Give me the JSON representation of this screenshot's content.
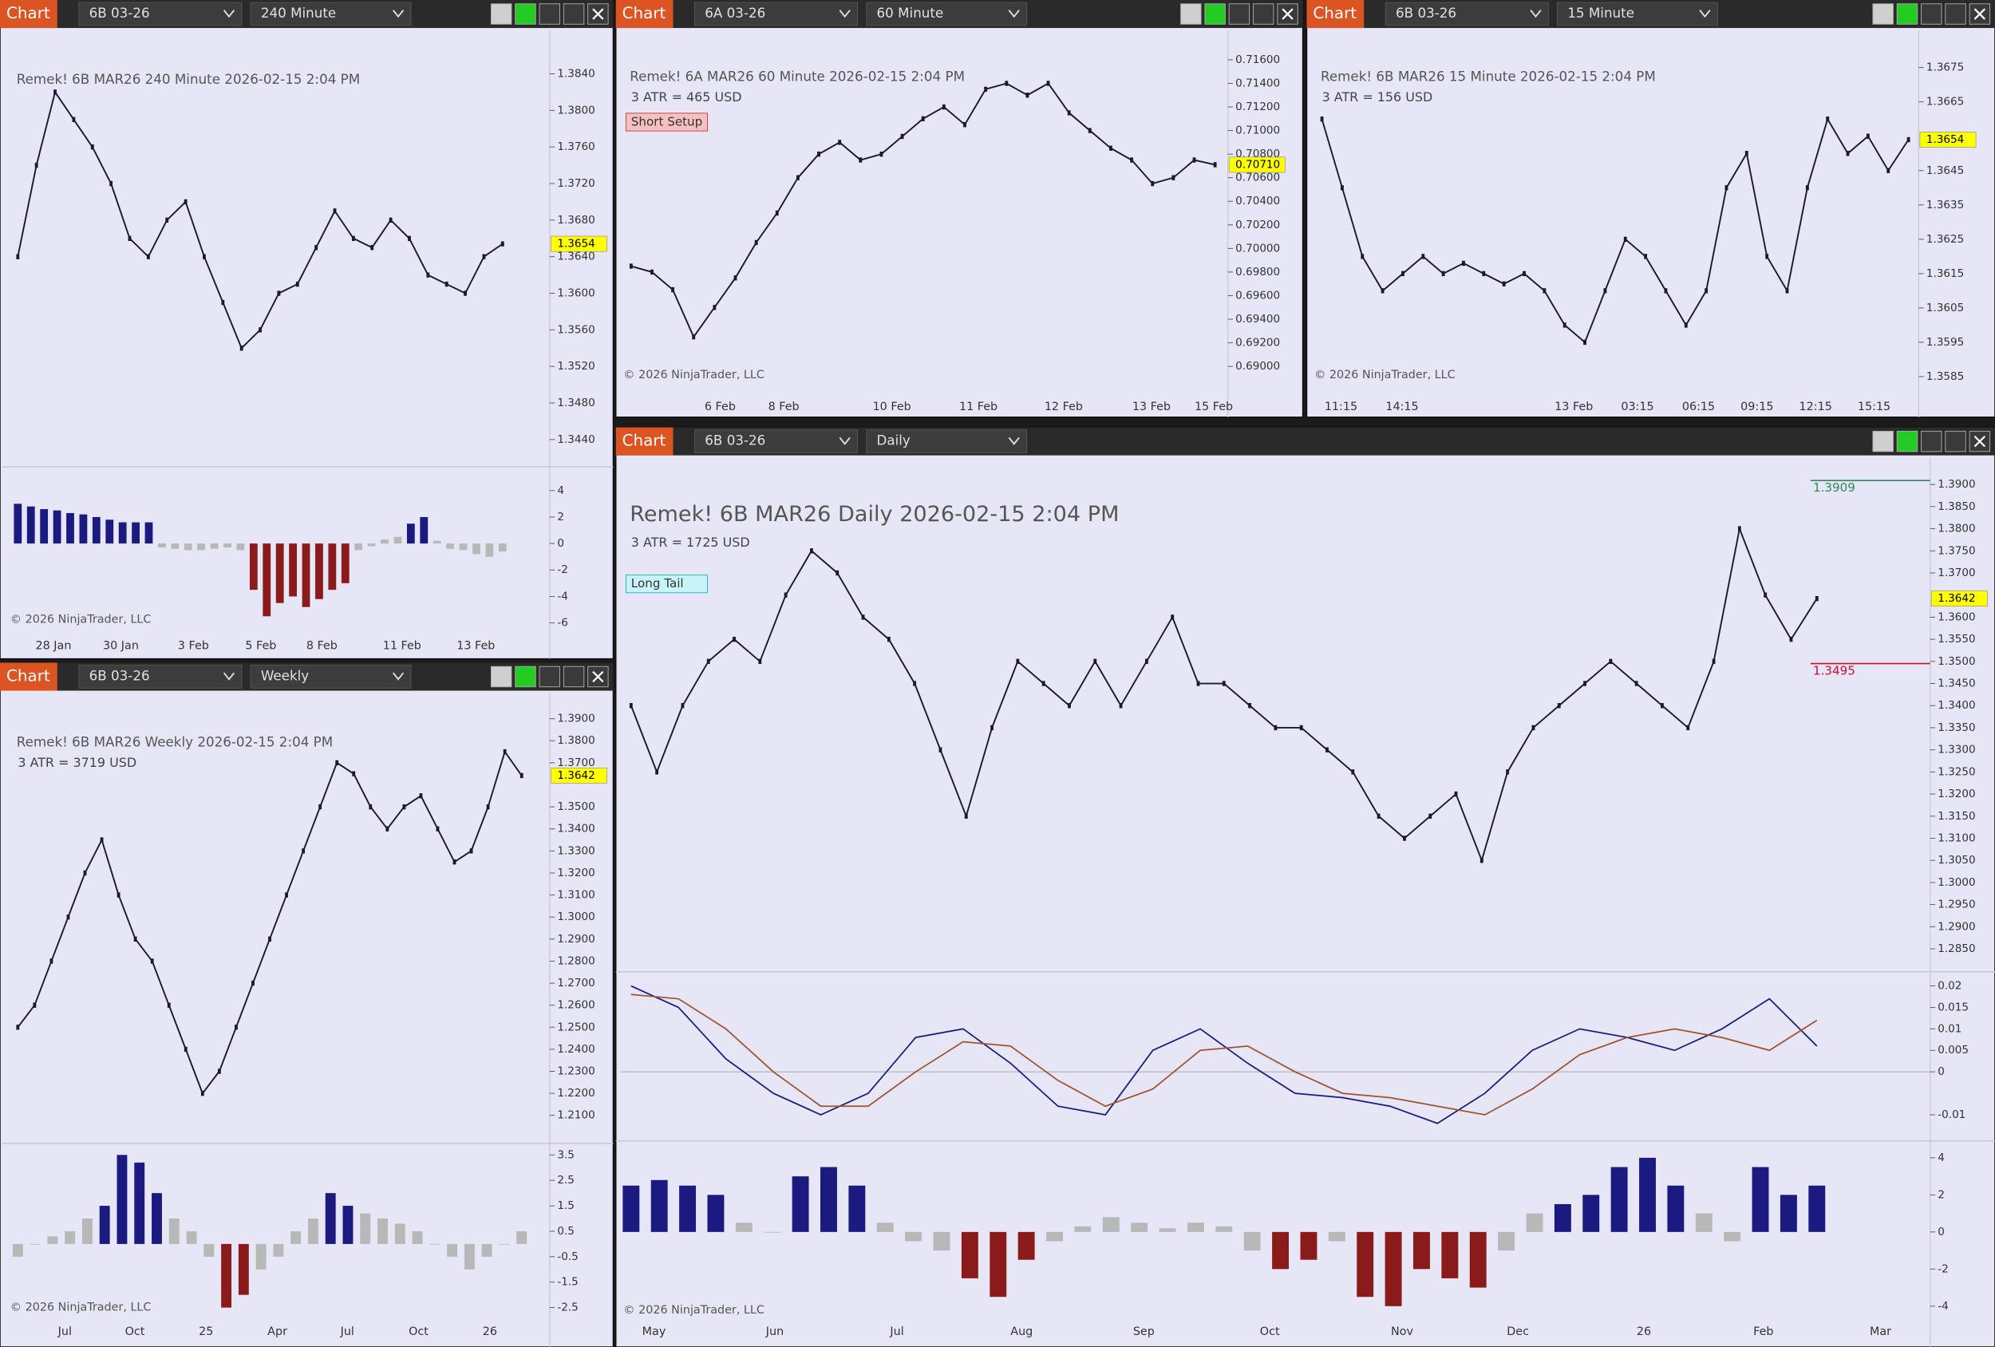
{
  "windows": [
    {
      "toolbar": {
        "label": "Chart",
        "instrument": "6B 03-26",
        "timeframe": "240 Minute"
      },
      "chart": {
        "type": "line",
        "title": "Remek!  6B MAR26  240 Minute  2026-02-15 2:04 PM",
        "ylim": [
          1.3413,
          1.3879
        ],
        "yticks": [
          {
            "value": 1.384,
            "label": "1.3840"
          },
          {
            "value": 1.38,
            "label": "1.3800"
          },
          {
            "value": 1.376,
            "label": "1.3760"
          },
          {
            "value": 1.372,
            "label": "1.3720"
          },
          {
            "value": 1.368,
            "label": "1.3680"
          },
          {
            "value": 1.364,
            "label": "1.3640"
          },
          {
            "value": 1.36,
            "label": "1.3600"
          },
          {
            "value": 1.356,
            "label": "1.3560"
          },
          {
            "value": 1.352,
            "label": "1.3520"
          },
          {
            "value": 1.348,
            "label": "1.3480"
          },
          {
            "value": 1.344,
            "label": "1.3440"
          }
        ],
        "x_labels": [
          "28 Jan",
          "30 Jan",
          "3 Feb",
          "5 Feb",
          "8 Feb",
          "11 Feb",
          "13 Feb"
        ],
        "closes": [
          1.364,
          1.374,
          1.382,
          1.379,
          1.376,
          1.372,
          1.366,
          1.364,
          1.368,
          1.37,
          1.364,
          1.359,
          1.354,
          1.356,
          1.36,
          1.361,
          1.365,
          1.369,
          1.366,
          1.365,
          1.368,
          1.366,
          1.362,
          1.361,
          1.36,
          1.364,
          1.3654
        ],
        "price_color": "#1a1a2e",
        "last_price": 1.3654,
        "indicator": {
          "ylim": [
            -6.7,
            5.7
          ],
          "yticks": [
            4,
            2,
            0,
            -2,
            -4,
            -6
          ],
          "values": [
            3.0,
            2.8,
            2.6,
            2.5,
            2.3,
            2.2,
            2.0,
            1.8,
            1.6,
            1.6,
            1.6,
            -0.3,
            -0.4,
            -0.5,
            -0.5,
            -0.4,
            -0.3,
            -0.5,
            -3.5,
            -5.5,
            -4.5,
            -4.0,
            -4.8,
            -4.2,
            -3.5,
            -3.0,
            -0.5,
            -0.2,
            0.3,
            0.5,
            1.5,
            2.0,
            0.2,
            -0.4,
            -0.5,
            -0.8,
            -1.0,
            -0.6
          ]
        },
        "colors": {
          "up": "#1a1a80",
          "down": "#8b1a1a",
          "flat": "#b8b8b8"
        },
        "copyright": "© 2026 NinjaTrader, LLC"
      }
    },
    {
      "toolbar": {
        "label": "Chart",
        "instrument": "6A 03-26",
        "timeframe": "60 Minute"
      },
      "chart": {
        "type": "line",
        "title": "Remek!  6A MAR26  60 Minute  2026-02-15 2:04 PM",
        "atr": "3 ATR = 465 USD",
        "setup": "Short Setup",
        "ylim": [
          0.68817,
          0.71805
        ],
        "yticks": [
          {
            "value": 0.716,
            "label": "0.71600"
          },
          {
            "value": 0.714,
            "label": "0.71400"
          },
          {
            "value": 0.712,
            "label": "0.71200"
          },
          {
            "value": 0.71,
            "label": "0.71000"
          },
          {
            "value": 0.708,
            "label": "0.70800"
          },
          {
            "value": 0.706,
            "label": "0.70600"
          },
          {
            "value": 0.704,
            "label": "0.70400"
          },
          {
            "value": 0.702,
            "label": "0.70200"
          },
          {
            "value": 0.7,
            "label": "0.70000"
          },
          {
            "value": 0.698,
            "label": "0.69800"
          },
          {
            "value": 0.696,
            "label": "0.69600"
          },
          {
            "value": 0.694,
            "label": "0.69400"
          },
          {
            "value": 0.692,
            "label": "0.69200"
          },
          {
            "value": 0.69,
            "label": "0.69000"
          }
        ],
        "x_labels": [
          "6 Feb",
          "8 Feb",
          "10 Feb",
          "11 Feb",
          "12 Feb",
          "13 Feb",
          "15 Feb"
        ],
        "closes": [
          0.6985,
          0.698,
          0.6965,
          0.6925,
          0.695,
          0.6975,
          0.7005,
          0.703,
          0.706,
          0.708,
          0.709,
          0.7075,
          0.708,
          0.7095,
          0.711,
          0.712,
          0.7105,
          0.7135,
          0.714,
          0.713,
          0.714,
          0.7115,
          0.71,
          0.7085,
          0.7075,
          0.7055,
          0.706,
          0.7075,
          0.7071
        ],
        "price_color": "#1a1a2e",
        "last_price": {
          "value": 0.7071,
          "label": "0.70710"
        },
        "copyright": "© 2026 NinjaTrader, LLC"
      }
    },
    {
      "toolbar": {
        "label": "Chart",
        "instrument": "6B 03-26",
        "timeframe": "15 Minute"
      },
      "chart": {
        "type": "line",
        "title": "Remek!  6B MAR26  15 Minute  2026-02-15 2:04 PM",
        "atr": "3 ATR = 156 USD",
        "ylim": [
          1.35817,
          1.36843
        ],
        "yticks": [
          {
            "value": 1.3675,
            "label": "1.3675"
          },
          {
            "value": 1.3665,
            "label": "1.3665"
          },
          {
            "value": 1.3645,
            "label": "1.3645"
          },
          {
            "value": 1.3635,
            "label": "1.3635"
          },
          {
            "value": 1.3625,
            "label": "1.3625"
          },
          {
            "value": 1.3615,
            "label": "1.3615"
          },
          {
            "value": 1.3605,
            "label": "1.3605"
          },
          {
            "value": 1.3595,
            "label": "1.3595"
          },
          {
            "value": 1.3585,
            "label": "1.3585"
          }
        ],
        "x_labels": [
          "11:15",
          "14:15",
          "13 Feb",
          "03:15",
          "06:15",
          "09:15",
          "12:15",
          "15:15"
        ],
        "closes": [
          1.366,
          1.364,
          1.362,
          1.361,
          1.3615,
          1.362,
          1.3615,
          1.3618,
          1.3615,
          1.3612,
          1.3615,
          1.361,
          1.36,
          1.3595,
          1.361,
          1.3625,
          1.362,
          1.361,
          1.36,
          1.361,
          1.364,
          1.365,
          1.362,
          1.361,
          1.364,
          1.366,
          1.365,
          1.3655,
          1.3645,
          1.3654
        ],
        "price_color": "#1a1a2e",
        "last_price": 1.3654,
        "copyright": "© 2026 NinjaTrader, LLC"
      }
    },
    {
      "toolbar": {
        "label": "Chart",
        "instrument": "6B 03-26",
        "timeframe": "Weekly"
      },
      "chart": {
        "type": "line",
        "title": "Remek!  6B MAR26  Weekly  2026-02-15 2:04 PM",
        "atr": "3 ATR = 3719 USD",
        "ylim": [
          1.1984,
          1.3981
        ],
        "yticks": [
          {
            "value": 1.39,
            "label": "1.3900"
          },
          {
            "value": 1.38,
            "label": "1.3800"
          },
          {
            "value": 1.37,
            "label": "1.3700"
          },
          {
            "value": 1.35,
            "label": "1.3500"
          },
          {
            "value": 1.34,
            "label": "1.3400"
          },
          {
            "value": 1.33,
            "label": "1.3300"
          },
          {
            "value": 1.32,
            "label": "1.3200"
          },
          {
            "value": 1.31,
            "label": "1.3100"
          },
          {
            "value": 1.3,
            "label": "1.3000"
          },
          {
            "value": 1.29,
            "label": "1.2900"
          },
          {
            "value": 1.28,
            "label": "1.2800"
          },
          {
            "value": 1.27,
            "label": "1.2700"
          },
          {
            "value": 1.26,
            "label": "1.2600"
          },
          {
            "value": 1.25,
            "label": "1.2500"
          },
          {
            "value": 1.24,
            "label": "1.2400"
          },
          {
            "value": 1.23,
            "label": "1.2300"
          },
          {
            "value": 1.22,
            "label": "1.2200"
          },
          {
            "value": 1.21,
            "label": "1.2100"
          }
        ],
        "x_labels": [
          "Jul",
          "Oct",
          "25",
          "Apr",
          "Jul",
          "Oct",
          "26"
        ],
        "closes": [
          1.25,
          1.26,
          1.28,
          1.3,
          1.32,
          1.335,
          1.31,
          1.29,
          1.28,
          1.26,
          1.24,
          1.22,
          1.23,
          1.25,
          1.27,
          1.29,
          1.31,
          1.33,
          1.35,
          1.37,
          1.365,
          1.35,
          1.34,
          1.35,
          1.355,
          1.34,
          1.325,
          1.33,
          1.35,
          1.375,
          1.3642
        ],
        "price_color": "#1a1a2e",
        "last_price": 1.3642,
        "indicator": {
          "ylim": [
            -3.0,
            3.9
          ],
          "yticks": [
            3.5,
            2.5,
            1.5,
            0.5,
            -0.5,
            -1.5,
            -2.5
          ],
          "values": [
            -0.5,
            0,
            0.3,
            0.5,
            1.0,
            1.5,
            3.5,
            3.2,
            2.0,
            1.0,
            0.5,
            -0.5,
            -2.5,
            -2.0,
            -1.0,
            -0.5,
            0.5,
            1.0,
            2.0,
            1.5,
            1.2,
            1.0,
            0.8,
            0.5,
            0,
            -0.5,
            -1.0,
            -0.5,
            0,
            0.5
          ]
        },
        "colors": {
          "up": "#1a1a80",
          "down": "#8b1a1a",
          "flat": "#b8b8b8"
        },
        "copyright": "© 2026 NinjaTrader, LLC"
      }
    },
    {
      "toolbar": {
        "label": "Chart",
        "instrument": "6B 03-26",
        "timeframe": "Daily"
      },
      "chart": {
        "type": "line",
        "title": "Remek!  6B MAR26  Daily  2026-02-15 2:04 PM",
        "atr": "3 ATR = 1725 USD",
        "setup": "Long Tail",
        "ylim": [
          1.2801,
          1.394
        ],
        "yticks": [
          {
            "value": 1.39,
            "label": "1.3900"
          },
          {
            "value": 1.385,
            "label": "1.3850"
          },
          {
            "value": 1.38,
            "label": "1.3800"
          },
          {
            "value": 1.375,
            "label": "1.3750"
          },
          {
            "value": 1.37,
            "label": "1.3700"
          },
          {
            "value": 1.36,
            "label": "1.3600"
          },
          {
            "value": 1.355,
            "label": "1.3550"
          },
          {
            "value": 1.35,
            "label": "1.3500"
          },
          {
            "value": 1.345,
            "label": "1.3450"
          },
          {
            "value": 1.34,
            "label": "1.3400"
          },
          {
            "value": 1.335,
            "label": "1.3350"
          },
          {
            "value": 1.33,
            "label": "1.3300"
          },
          {
            "value": 1.325,
            "label": "1.3250"
          },
          {
            "value": 1.32,
            "label": "1.3200"
          },
          {
            "value": 1.315,
            "label": "1.3150"
          },
          {
            "value": 1.31,
            "label": "1.3100"
          },
          {
            "value": 1.305,
            "label": "1.3050"
          },
          {
            "value": 1.3,
            "label": "1.3000"
          },
          {
            "value": 1.295,
            "label": "1.2950"
          },
          {
            "value": 1.29,
            "label": "1.2900"
          },
          {
            "value": 1.285,
            "label": "1.2850"
          }
        ],
        "x_labels": [
          "May",
          "Jun",
          "Jul",
          "Aug",
          "Sep",
          "Oct",
          "Nov",
          "Dec",
          "26",
          "Feb",
          "Mar"
        ],
        "closes": [
          1.34,
          1.325,
          1.34,
          1.35,
          1.355,
          1.35,
          1.365,
          1.375,
          1.37,
          1.36,
          1.355,
          1.345,
          1.33,
          1.315,
          1.335,
          1.35,
          1.345,
          1.34,
          1.35,
          1.34,
          1.35,
          1.36,
          1.345,
          1.345,
          1.34,
          1.335,
          1.335,
          1.33,
          1.325,
          1.315,
          1.31,
          1.315,
          1.32,
          1.305,
          1.325,
          1.335,
          1.34,
          1.345,
          1.35,
          1.345,
          1.34,
          1.335,
          1.35,
          1.38,
          1.365,
          1.355,
          1.3642
        ],
        "price_color": "#1a1a2e",
        "last_price": 1.3642,
        "levels": [
          {
            "value": 1.3909,
            "color": "#2e8b57"
          },
          {
            "value": 1.3495,
            "color": "#c8102e"
          }
        ],
        "oscillator": {
          "ylim": [
            -0.0155,
            0.023
          ],
          "yticks": [
            0.02,
            0.015,
            0.01,
            0.005,
            0,
            -0.01
          ],
          "series": [
            {
              "color": "#1a1a80",
              "values": [
                0.02,
                0.015,
                0.003,
                -0.005,
                -0.01,
                -0.005,
                0.008,
                0.01,
                0.002,
                -0.008,
                -0.01,
                0.005,
                0.01,
                0.002,
                -0.005,
                -0.006,
                -0.008,
                -0.012,
                -0.005,
                0.005,
                0.01,
                0.008,
                0.005,
                0.01,
                0.017,
                0.006
              ]
            },
            {
              "color": "#a0522d",
              "values": [
                0.018,
                0.017,
                0.01,
                0.0,
                -0.008,
                -0.008,
                0.0,
                0.007,
                0.006,
                -0.002,
                -0.008,
                -0.004,
                0.005,
                0.006,
                0,
                -0.005,
                -0.006,
                -0.008,
                -0.01,
                -0.004,
                0.004,
                0.008,
                0.01,
                0.008,
                0.005,
                0.012
              ]
            }
          ]
        },
        "indicator": {
          "ylim": [
            -4.9,
            4.84
          ],
          "yticks": [
            4,
            2,
            0,
            -2,
            -4
          ],
          "values": [
            2.5,
            2.8,
            2.5,
            2.0,
            0.5,
            0,
            3.0,
            3.5,
            2.5,
            0.5,
            -0.5,
            -1.0,
            -2.5,
            -3.5,
            -1.5,
            -0.5,
            0.3,
            0.8,
            0.5,
            0.2,
            0.5,
            0.3,
            -1.0,
            -2.0,
            -1.5,
            -0.5,
            -3.5,
            -4.0,
            -2.0,
            -2.5,
            -3.0,
            -1.0,
            1.0,
            1.5,
            2.0,
            3.5,
            4.0,
            2.5,
            1.0,
            -0.5,
            3.5,
            2.0,
            2.5
          ]
        },
        "colors": {
          "up": "#1a1a80",
          "down": "#8b1a1a",
          "flat": "#b8b8b8"
        },
        "copyright": "© 2026 NinjaTrader, LLC"
      }
    }
  ]
}
